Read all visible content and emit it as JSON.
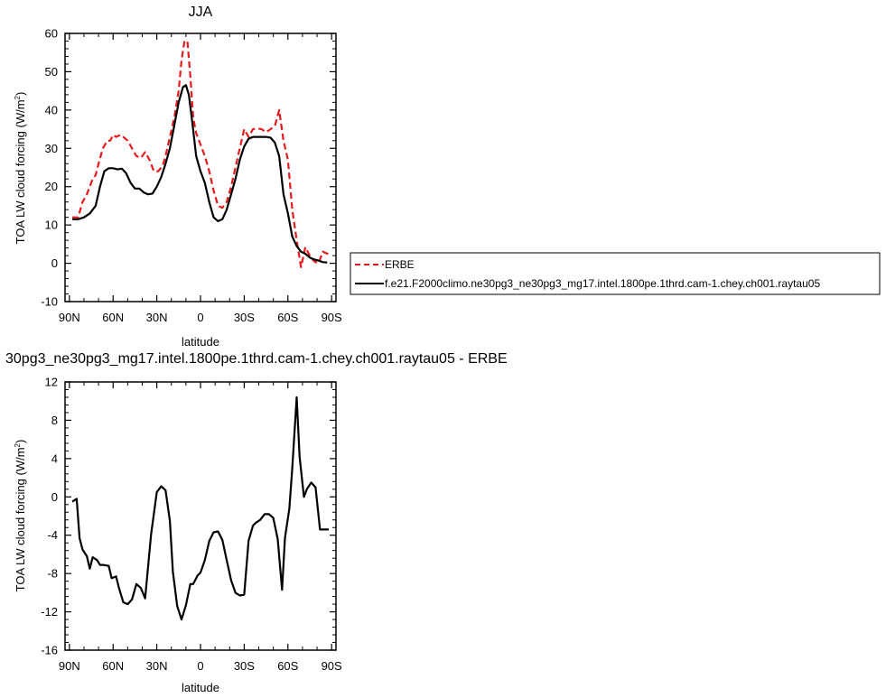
{
  "chart_data": [
    {
      "type": "line",
      "title": "JJA",
      "xlabel": "latitude",
      "ylabel": "TOA LW cloud forcing (W/m",
      "ylabel_sup": "2",
      "ylabel_close": ")",
      "x_ticks": [
        {
          "value": -90,
          "label": "90N"
        },
        {
          "value": -60,
          "label": "60N"
        },
        {
          "value": -30,
          "label": "30N"
        },
        {
          "value": 0,
          "label": "0"
        },
        {
          "value": 30,
          "label": "30S"
        },
        {
          "value": 60,
          "label": "60S"
        },
        {
          "value": 90,
          "label": "90S"
        }
      ],
      "y_ticks": [
        -10,
        0,
        10,
        20,
        30,
        40,
        50,
        60
      ],
      "xlim": [
        -93,
        93
      ],
      "ylim": [
        -10,
        60
      ],
      "legend": {
        "position": "right"
      },
      "series": [
        {
          "name": "ERBE",
          "color": "#e41a1c",
          "dash": "dashed",
          "x": [
            -88,
            -84,
            -81,
            -78,
            -76,
            -74,
            -72,
            -70,
            -67,
            -64,
            -62,
            -60,
            -58,
            -55,
            -53,
            -50,
            -47,
            -44,
            -41,
            -38,
            -35,
            -32,
            -29,
            -26,
            -24,
            -21,
            -18,
            -15,
            -13,
            -11,
            -9,
            -7,
            -5,
            -3,
            0,
            3,
            6,
            9,
            12,
            15,
            18,
            21,
            24,
            27,
            30,
            33,
            36,
            39,
            42,
            45,
            48,
            51,
            54,
            57,
            60,
            63,
            66,
            69,
            72,
            75,
            78,
            81,
            84,
            87,
            88
          ],
          "y": [
            12,
            12,
            16,
            18,
            20,
            22,
            23,
            26,
            30,
            32,
            32,
            33.5,
            33,
            33.5,
            33,
            32,
            30,
            28,
            27.5,
            29,
            27,
            24,
            24,
            25.5,
            28,
            33,
            38,
            45,
            53,
            58,
            58,
            49,
            38,
            34,
            31,
            28,
            24,
            19,
            15,
            14.5,
            16,
            20,
            25,
            30,
            35,
            33,
            35,
            35.2,
            35,
            34.2,
            35,
            35.8,
            40,
            32,
            27,
            14,
            6,
            -1,
            4.2,
            2,
            0.5,
            0,
            3,
            2.5,
            3
          ]
        },
        {
          "name": "f.e21.F2000climo.ne30pg3_ne30pg3_mg17.intel.1800pe.1thrd.cam-1.chey.ch001.raytau05",
          "color": "#000000",
          "dash": "solid",
          "x": [
            -88,
            -84,
            -80,
            -76,
            -72,
            -69,
            -66,
            -63,
            -60,
            -57,
            -54,
            -51,
            -48,
            -45,
            -42,
            -39,
            -36,
            -33,
            -30,
            -27,
            -24,
            -21,
            -18,
            -15,
            -12,
            -10,
            -8,
            -6,
            -3,
            0,
            3,
            6,
            9,
            12,
            15,
            18,
            21,
            24,
            27,
            30,
            33,
            36,
            39,
            42,
            45,
            48,
            51,
            54,
            57,
            60,
            63,
            66,
            69,
            72,
            75,
            78,
            81,
            84,
            87
          ],
          "y": [
            11.5,
            11.5,
            12,
            13,
            15,
            20,
            24,
            24.8,
            24.8,
            24.5,
            24.7,
            23.5,
            21,
            19.5,
            19.5,
            18.5,
            18,
            18.2,
            20,
            22.5,
            26,
            30,
            36,
            42,
            46,
            46.5,
            44,
            38,
            28,
            24,
            21,
            16,
            12,
            11,
            11.5,
            14,
            18,
            22,
            27,
            30.5,
            32.5,
            33,
            33,
            33,
            33,
            32.8,
            31.5,
            28,
            18,
            13,
            7,
            4.5,
            3,
            2.5,
            1.5,
            1,
            0.7,
            0.3,
            0.2
          ]
        }
      ]
    },
    {
      "type": "line",
      "title": "30pg3_ne30pg3_mg17.intel.1800pe.1thrd.cam-1.chey.ch001.raytau05 - ERBE",
      "xlabel": "latitude",
      "ylabel": "TOA LW cloud forcing (W/m",
      "ylabel_sup": "2",
      "ylabel_close": ")",
      "x_ticks": [
        {
          "value": -90,
          "label": "90N"
        },
        {
          "value": -60,
          "label": "60N"
        },
        {
          "value": -30,
          "label": "30N"
        },
        {
          "value": 0,
          "label": "0"
        },
        {
          "value": 30,
          "label": "30S"
        },
        {
          "value": 60,
          "label": "60S"
        },
        {
          "value": 90,
          "label": "90S"
        }
      ],
      "y_ticks": [
        -16,
        -12,
        -8,
        -4,
        0,
        4,
        8,
        12
      ],
      "xlim": [
        -93,
        93
      ],
      "ylim": [
        -16,
        12
      ],
      "series": [
        {
          "color": "#000000",
          "dash": "solid",
          "x": [
            -88,
            -85,
            -83,
            -81,
            -78,
            -76,
            -74,
            -71,
            -69,
            -67,
            -63,
            -61,
            -58,
            -56,
            -53,
            -50,
            -47,
            -44,
            -41,
            -38,
            -34,
            -30,
            -27,
            -24,
            -21,
            -19,
            -16,
            -13,
            -10,
            -7,
            -5,
            -2,
            0,
            3,
            6,
            9,
            12,
            15,
            18,
            21,
            24,
            27,
            30,
            33,
            36,
            38,
            41,
            44,
            47,
            50,
            53,
            56,
            58,
            61,
            63,
            66,
            68,
            71,
            73,
            76,
            79,
            82,
            85,
            88
          ],
          "y": [
            -0.5,
            -0.2,
            -4.3,
            -5.5,
            -6.2,
            -7.5,
            -6.3,
            -6.6,
            -7.1,
            -7.1,
            -7.2,
            -8.5,
            -8.3,
            -9.5,
            -11.0,
            -11.2,
            -10.7,
            -9.1,
            -9.5,
            -10.6,
            -4.0,
            0.5,
            1.1,
            0.7,
            -2.5,
            -7.8,
            -11.4,
            -12.8,
            -11.3,
            -9.1,
            -9.1,
            -8.2,
            -7.9,
            -6.6,
            -4.6,
            -3.7,
            -3.6,
            -4.5,
            -6.6,
            -8.7,
            -10.0,
            -10.3,
            -10.2,
            -4.6,
            -3.0,
            -2.7,
            -2.4,
            -1.8,
            -1.8,
            -2.2,
            -4.4,
            -9.7,
            -4.3,
            -1.2,
            3.0,
            10.4,
            4.2,
            0.0,
            0.8,
            1.5,
            1.0,
            -3.4,
            -3.4,
            -3.4
          ]
        }
      ]
    }
  ]
}
